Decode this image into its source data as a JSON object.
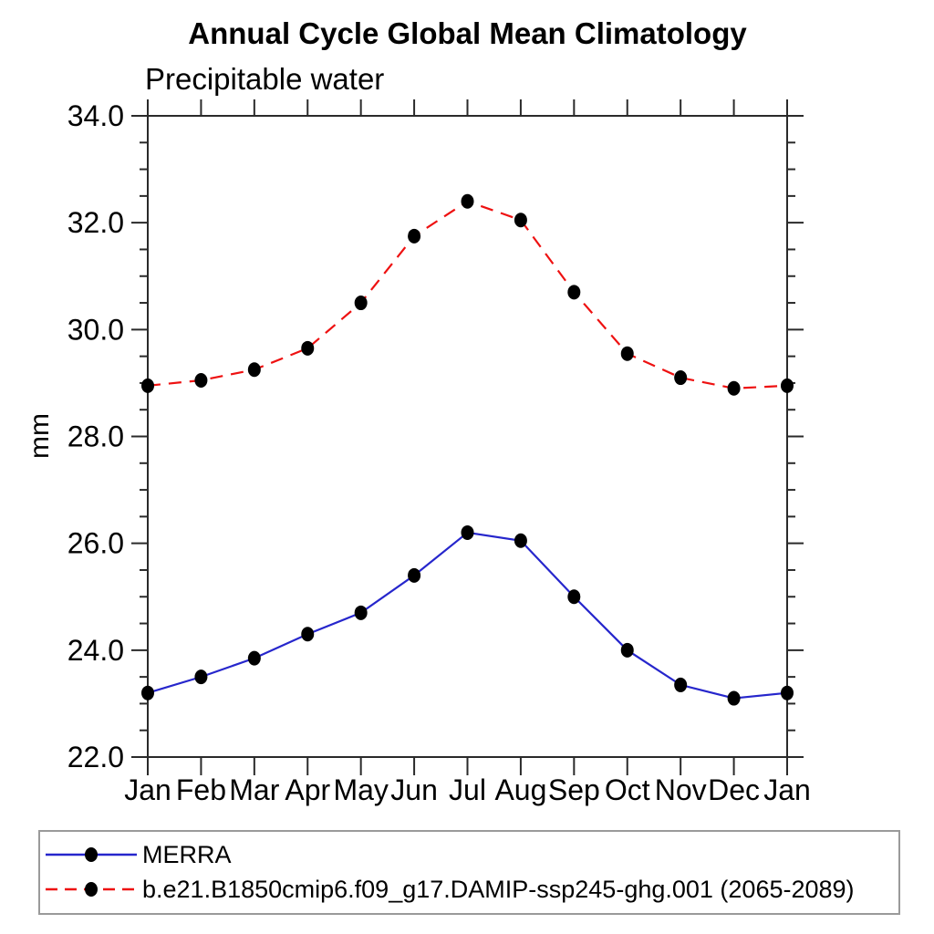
{
  "title": "Annual Cycle Global Mean Climatology",
  "subtitle": "Precipitable water",
  "frame_color": "#2a2a2a",
  "legend_border_color": "#9a9a9a",
  "chart_data": {
    "type": "line",
    "title": "Annual Cycle Global Mean Climatology",
    "subtitle": "Precipitable water",
    "xlabel": "",
    "ylabel": "mm",
    "x_categories": [
      "Jan",
      "Feb",
      "Mar",
      "Apr",
      "May",
      "Jun",
      "Jul",
      "Aug",
      "Sep",
      "Oct",
      "Nov",
      "Dec",
      "Jan"
    ],
    "ylim": [
      22.0,
      34.0
    ],
    "ytick_major_interval": 2.0,
    "ytick_minor_interval": 0.5,
    "ytick_labels": [
      "22.0",
      "24.0",
      "26.0",
      "28.0",
      "30.0",
      "32.0",
      "34.0"
    ],
    "grid": false,
    "legend_position": "bottom-left-box",
    "series": [
      {
        "name": "MERRA",
        "color": "#2626cc",
        "line_style": "solid",
        "marker": "filled-circle",
        "marker_color": "#000000",
        "values": [
          23.2,
          23.5,
          23.85,
          24.3,
          24.7,
          25.4,
          26.2,
          26.05,
          25.0,
          24.0,
          23.35,
          23.1,
          23.2
        ]
      },
      {
        "name": "b.e21.B1850cmip6.f09_g17.DAMIP-ssp245-ghg.001 (2065-2089)",
        "color": "#ee1111",
        "line_style": "dashed",
        "marker": "filled-circle",
        "marker_color": "#000000",
        "values": [
          28.95,
          29.05,
          29.25,
          29.65,
          30.5,
          31.75,
          32.4,
          32.05,
          30.7,
          29.55,
          29.1,
          28.9,
          28.95
        ]
      }
    ]
  }
}
